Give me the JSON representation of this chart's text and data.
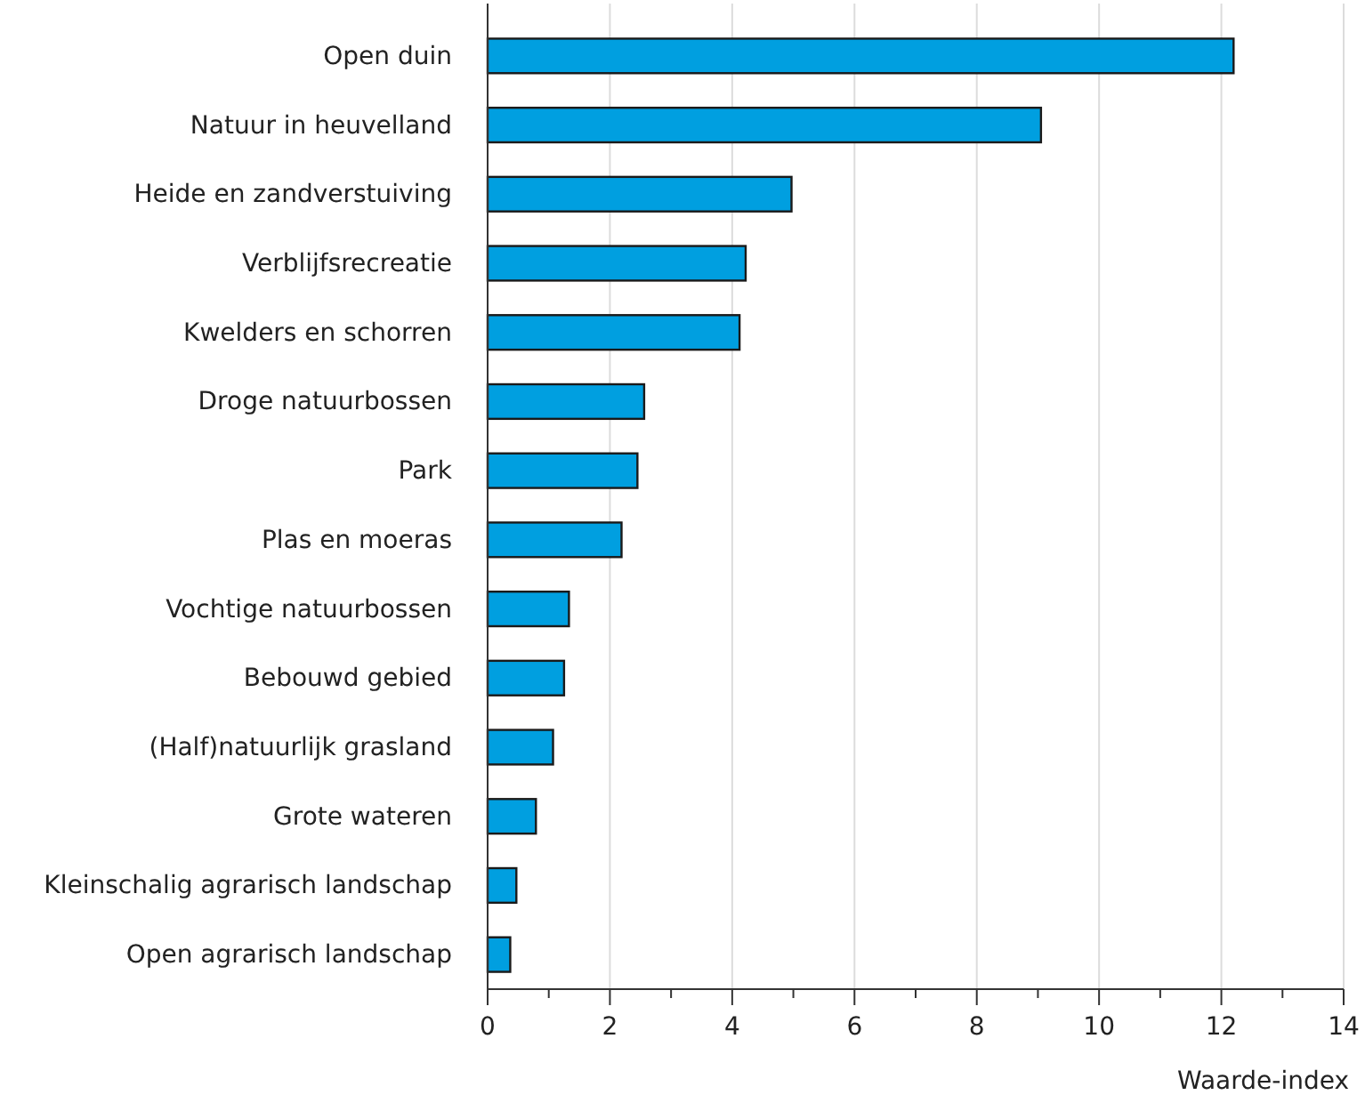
{
  "chart_data": {
    "type": "bar",
    "orientation": "horizontal",
    "xlabel": "Waarde-index",
    "categories": [
      "Open duin",
      "Natuur in heuvelland",
      "Heide en zandverstuiving",
      "Verblijfsrecreatie",
      "Kwelders en schorren",
      "Droge natuurbossen",
      "Park",
      "Plas en moeras",
      "Vochtige natuurbossen",
      "Bebouwd gebied",
      "(Half)natuurlijk grasland",
      "Grote wateren",
      "Kleinschalig agrarisch landschap",
      "Open agrarisch landschap"
    ],
    "values": [
      12.2,
      9.05,
      4.97,
      4.22,
      4.12,
      2.56,
      2.45,
      2.19,
      1.33,
      1.25,
      1.07,
      0.79,
      0.47,
      0.37
    ],
    "color": "#009fe0",
    "xlim": [
      0,
      14
    ],
    "xticks": [
      0,
      {
        "value": 1,
        "label": null
      },
      2,
      {
        "value": 3,
        "label": null
      },
      4,
      {
        "value": 5,
        "label": null
      },
      6,
      {
        "value": 7,
        "label": null
      },
      8,
      {
        "value": 9,
        "label": null
      },
      10,
      {
        "value": 11,
        "label": null
      },
      12,
      {
        "value": 13,
        "label": null
      },
      14
    ],
    "grid": "x"
  }
}
